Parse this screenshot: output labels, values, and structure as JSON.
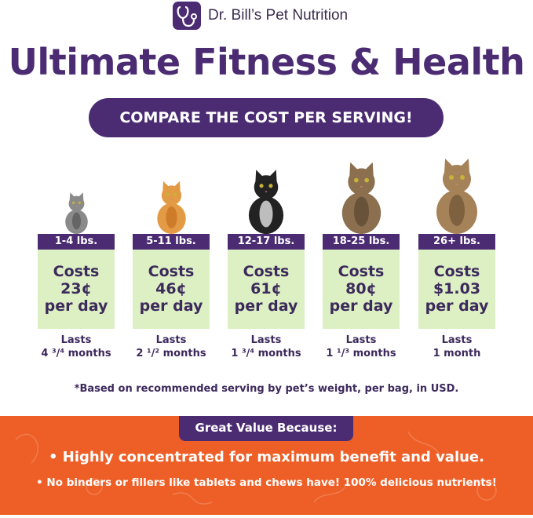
{
  "header": {
    "brand": "Dr. Bill’s Pet Nutrition",
    "title": "Ultimate Fitness & Health",
    "banner": "COMPARE THE COST PER SERVING!"
  },
  "tiers": [
    {
      "weight": "1-4 lbs.",
      "costs": "Costs",
      "price": "23¢",
      "per": "per day",
      "lasts": "Lasts",
      "duration": "4 ³/⁴ months",
      "cat": "kitten-tabby"
    },
    {
      "weight": "5-11 lbs.",
      "costs": "Costs",
      "price": "46¢",
      "per": "per day",
      "lasts": "Lasts",
      "duration": "2 ¹/² months",
      "cat": "orange-cat"
    },
    {
      "weight": "12-17 lbs.",
      "costs": "Costs",
      "price": "61¢",
      "per": "per day",
      "lasts": "Lasts",
      "duration": "1 ³/⁴ months",
      "cat": "tuxedo-cat"
    },
    {
      "weight": "18-25 lbs.",
      "costs": "Costs",
      "price": "80¢",
      "per": "per day",
      "lasts": "Lasts",
      "duration": "1 ¹/³ months",
      "cat": "maine-coon-cat"
    },
    {
      "weight": "26+ lbs.",
      "costs": "Costs",
      "price": "$1.03",
      "per": "per day",
      "lasts": "Lasts",
      "duration": "1 month",
      "cat": "large-tabby-cat"
    }
  ],
  "footnote": "*Based on recommended serving by pet’s weight, per bag, in USD.",
  "value": {
    "heading": "Great Value Because:",
    "bullets": [
      "• Highly concentrated for maximum benefit and value.",
      "• No binders or fillers like tablets and chews have! 100% delicious nutrients!"
    ]
  },
  "colors": {
    "purple": "#4b2c73",
    "green": "#dcf0c3",
    "orange": "#ee5f27"
  }
}
